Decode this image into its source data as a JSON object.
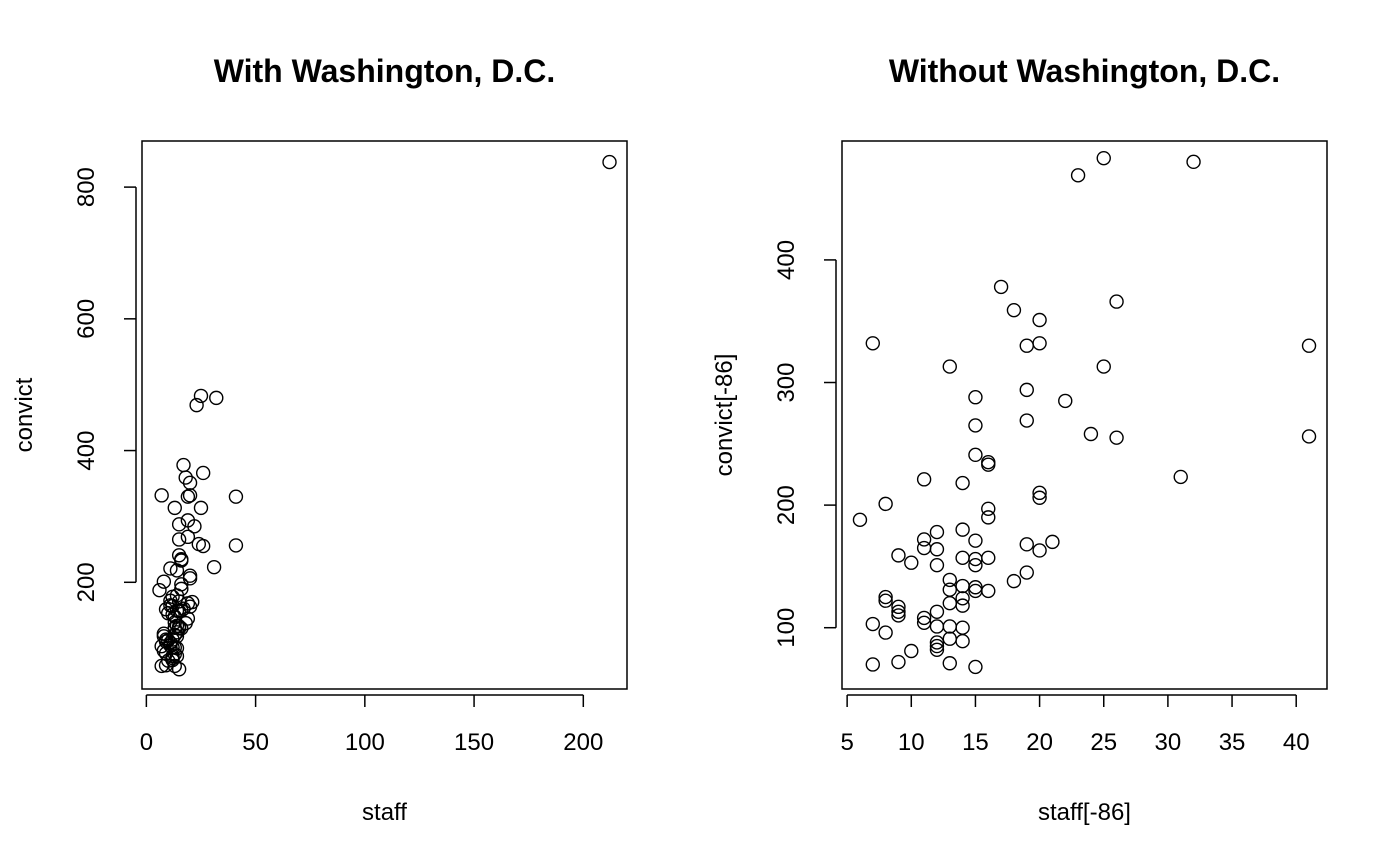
{
  "chart_data": [
    {
      "type": "scatter",
      "title": "With Washington, D.C.",
      "xlabel": "staff",
      "ylabel": "convict",
      "xlim": [
        -2,
        220
      ],
      "ylim": [
        38,
        870
      ],
      "xticks": [
        0,
        50,
        100,
        150,
        200
      ],
      "yticks": [
        200,
        400,
        600,
        800
      ],
      "points": [
        [
          7,
          332
        ],
        [
          13,
          313
        ],
        [
          8,
          201
        ],
        [
          6,
          188
        ],
        [
          11,
          221
        ],
        [
          8,
          122
        ],
        [
          9,
          159
        ],
        [
          10,
          153
        ],
        [
          9,
          110
        ],
        [
          9,
          113
        ],
        [
          8,
          96
        ],
        [
          7,
          103
        ],
        [
          7,
          73
        ],
        [
          9,
          74
        ],
        [
          10,
          81
        ],
        [
          11,
          104
        ],
        [
          11,
          108
        ],
        [
          11,
          165
        ],
        [
          11,
          172
        ],
        [
          12,
          178
        ],
        [
          12,
          164
        ],
        [
          12,
          151
        ],
        [
          12,
          113
        ],
        [
          12,
          101
        ],
        [
          12,
          88
        ],
        [
          12,
          85
        ],
        [
          12,
          82
        ],
        [
          13,
          139
        ],
        [
          13,
          131
        ],
        [
          13,
          120
        ],
        [
          13,
          101
        ],
        [
          13,
          91
        ],
        [
          13,
          73
        ],
        [
          14,
          180
        ],
        [
          14,
          157
        ],
        [
          14,
          134
        ],
        [
          14,
          124
        ],
        [
          14,
          118
        ],
        [
          14,
          100
        ],
        [
          14,
          88
        ],
        [
          14,
          218
        ],
        [
          15,
          288
        ],
        [
          15,
          265
        ],
        [
          15,
          241
        ],
        [
          15,
          171
        ],
        [
          15,
          156
        ],
        [
          15,
          133
        ],
        [
          15,
          130
        ],
        [
          15,
          68
        ],
        [
          16,
          233
        ],
        [
          16,
          235
        ],
        [
          16,
          197
        ],
        [
          16,
          190
        ],
        [
          16,
          157
        ],
        [
          16,
          130
        ],
        [
          17,
          378
        ],
        [
          18,
          359
        ],
        [
          18,
          138
        ],
        [
          19,
          330
        ],
        [
          19,
          294
        ],
        [
          19,
          269
        ],
        [
          19,
          168
        ],
        [
          19,
          145
        ],
        [
          20,
          351
        ],
        [
          20,
          332
        ],
        [
          20,
          210
        ],
        [
          20,
          206
        ],
        [
          20,
          163
        ],
        [
          21,
          170
        ],
        [
          22,
          285
        ],
        [
          23,
          469
        ],
        [
          24,
          258
        ],
        [
          25,
          483
        ],
        [
          25,
          313
        ],
        [
          26,
          366
        ],
        [
          26,
          255
        ],
        [
          31,
          223
        ],
        [
          32,
          480
        ],
        [
          41,
          330
        ],
        [
          41,
          256
        ],
        [
          8,
          118
        ],
        [
          10,
          112
        ],
        [
          9,
          92
        ],
        [
          13,
          148
        ],
        [
          17,
          160
        ],
        [
          212,
          838
        ]
      ]
    },
    {
      "type": "scatter",
      "title": "Without Washington, D.C.",
      "xlabel": "staff[-86]",
      "ylabel": "convict[-86]",
      "xlim": [
        4.6,
        42.4
      ],
      "ylim": [
        50,
        497
      ],
      "xticks": [
        5,
        10,
        15,
        20,
        25,
        30,
        35,
        40
      ],
      "yticks": [
        100,
        200,
        300,
        400
      ],
      "points": [
        [
          7,
          332
        ],
        [
          13,
          313
        ],
        [
          8,
          201
        ],
        [
          6,
          188
        ],
        [
          11,
          221
        ],
        [
          8,
          125
        ],
        [
          8,
          122
        ],
        [
          9,
          159
        ],
        [
          10,
          153
        ],
        [
          9,
          117
        ],
        [
          9,
          110
        ],
        [
          9,
          113
        ],
        [
          8,
          96
        ],
        [
          7,
          103
        ],
        [
          7,
          70
        ],
        [
          9,
          72
        ],
        [
          10,
          81
        ],
        [
          11,
          104
        ],
        [
          11,
          108
        ],
        [
          11,
          165
        ],
        [
          11,
          172
        ],
        [
          12,
          178
        ],
        [
          12,
          164
        ],
        [
          12,
          151
        ],
        [
          12,
          113
        ],
        [
          12,
          101
        ],
        [
          12,
          88
        ],
        [
          12,
          85
        ],
        [
          12,
          82
        ],
        [
          13,
          139
        ],
        [
          13,
          131
        ],
        [
          13,
          120
        ],
        [
          13,
          101
        ],
        [
          13,
          91
        ],
        [
          13,
          71
        ],
        [
          14,
          180
        ],
        [
          14,
          157
        ],
        [
          14,
          134
        ],
        [
          14,
          124
        ],
        [
          14,
          118
        ],
        [
          14,
          100
        ],
        [
          14,
          89
        ],
        [
          14,
          218
        ],
        [
          15,
          288
        ],
        [
          15,
          265
        ],
        [
          15,
          241
        ],
        [
          15,
          171
        ],
        [
          15,
          156
        ],
        [
          15,
          151
        ],
        [
          15,
          133
        ],
        [
          15,
          130
        ],
        [
          15,
          68
        ],
        [
          16,
          233
        ],
        [
          16,
          235
        ],
        [
          16,
          197
        ],
        [
          16,
          190
        ],
        [
          16,
          157
        ],
        [
          16,
          130
        ],
        [
          17,
          378
        ],
        [
          18,
          359
        ],
        [
          18,
          138
        ],
        [
          19,
          330
        ],
        [
          19,
          294
        ],
        [
          19,
          269
        ],
        [
          19,
          168
        ],
        [
          19,
          145
        ],
        [
          20,
          351
        ],
        [
          20,
          332
        ],
        [
          20,
          210
        ],
        [
          20,
          206
        ],
        [
          20,
          163
        ],
        [
          21,
          170
        ],
        [
          22,
          285
        ],
        [
          23,
          469
        ],
        [
          24,
          258
        ],
        [
          25,
          483
        ],
        [
          25,
          313
        ],
        [
          26,
          366
        ],
        [
          26,
          255
        ],
        [
          31,
          223
        ],
        [
          32,
          480
        ],
        [
          41,
          330
        ],
        [
          41,
          256
        ]
      ]
    }
  ]
}
